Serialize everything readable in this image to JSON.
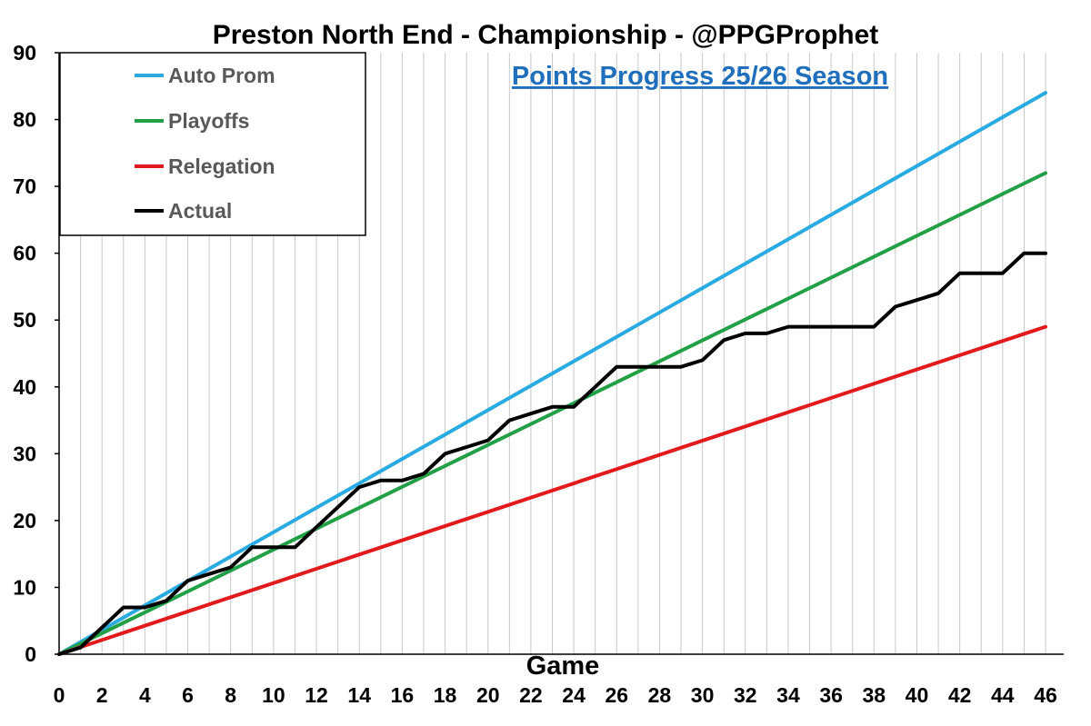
{
  "chart_data": {
    "type": "line",
    "title": "Preston North End - Championship - @PPGProphet",
    "subtitle": "Points Progress 25/26 Season",
    "xlabel": "Game",
    "ylabel": "",
    "xlim": [
      0,
      46
    ],
    "ylim": [
      0,
      90
    ],
    "x_ticks": [
      "0",
      "2",
      "4",
      "6",
      "8",
      "10",
      "12",
      "14",
      "16",
      "18",
      "20",
      "22",
      "24",
      "26",
      "28",
      "30",
      "32",
      "34",
      "36",
      "38",
      "40",
      "42",
      "44",
      "46"
    ],
    "y_ticks": [
      "0",
      "10",
      "20",
      "30",
      "40",
      "50",
      "60",
      "70",
      "80",
      "90"
    ],
    "grid": "vertical",
    "legend_position": "top-left",
    "series": [
      {
        "name": "Auto Prom",
        "color": "#29abe2",
        "x": [
          0,
          46
        ],
        "y": [
          0,
          84
        ]
      },
      {
        "name": "Playoffs",
        "color": "#22a045",
        "x": [
          0,
          46
        ],
        "y": [
          0,
          72
        ]
      },
      {
        "name": "Relegation",
        "color": "#e31a1c",
        "x": [
          0,
          46
        ],
        "y": [
          0,
          49
        ]
      },
      {
        "name": "Actual",
        "color": "#000000",
        "x": [
          0,
          1,
          2,
          3,
          4,
          5,
          6,
          7,
          8,
          9,
          10,
          11,
          12,
          13,
          14,
          15,
          16,
          17,
          18,
          19,
          20,
          21,
          22,
          23,
          24,
          25,
          26,
          27,
          28,
          29,
          30,
          31,
          32,
          33,
          34,
          35,
          36,
          37,
          38,
          39,
          40,
          41,
          42,
          43,
          44,
          45,
          46
        ],
        "y": [
          0,
          1,
          4,
          7,
          7,
          8,
          11,
          12,
          13,
          16,
          16,
          16,
          19,
          22,
          25,
          26,
          26,
          27,
          30,
          31,
          32,
          35,
          36,
          37,
          37,
          40,
          43,
          43,
          43,
          43,
          44,
          47,
          48,
          48,
          49,
          49,
          49,
          49,
          49,
          52,
          53,
          54,
          57,
          57,
          57,
          60,
          60
        ]
      }
    ]
  }
}
